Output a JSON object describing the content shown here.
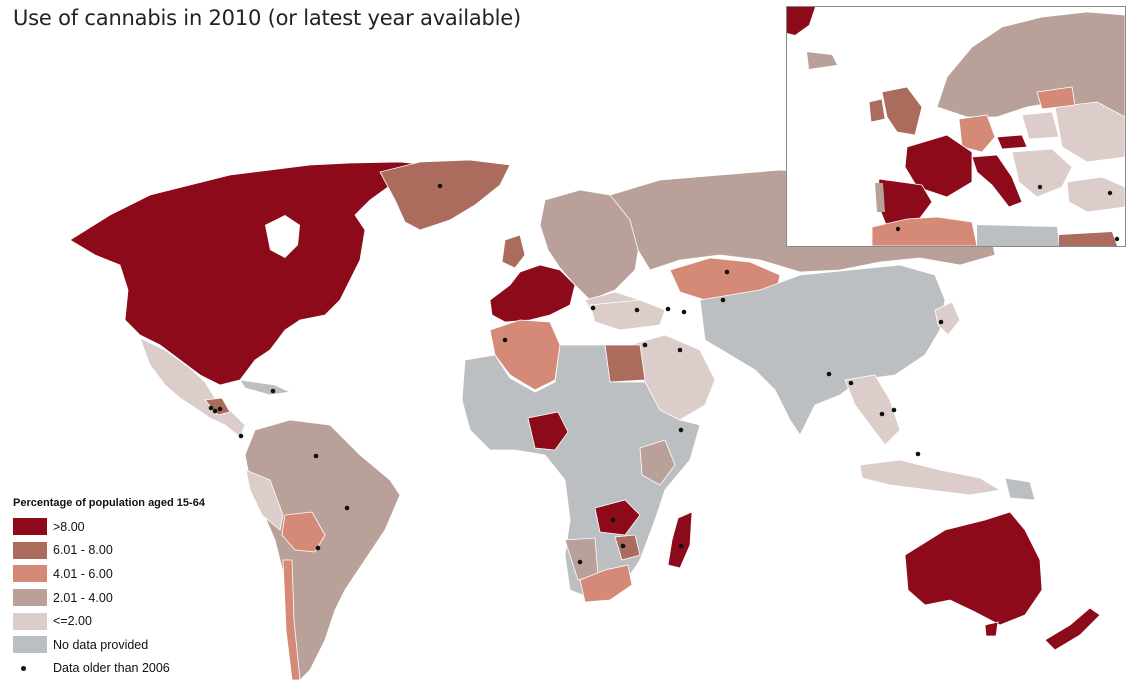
{
  "title": "Use of cannabis in 2010 (or latest year available)",
  "legend": {
    "title": "Percentage of population aged 15-64",
    "items": [
      {
        "label": ">8.00",
        "color": "#8c0a1a"
      },
      {
        "label": "6.01 - 8.00",
        "color": "#ab6b5d"
      },
      {
        "label": "4.01 - 6.00",
        "color": "#d58a78"
      },
      {
        "label": "2.01 - 4.00",
        "color": "#b9a19a"
      },
      {
        "label": "<=2.00",
        "color": "#ddcdca"
      },
      {
        "label": "No data provided",
        "color": "#bcbfc2"
      }
    ],
    "dot_label": "Data older than 2006",
    "dot_color": "#111111"
  },
  "regions": [
    {
      "name": "north-america",
      "category": ">8.00",
      "older_data": false
    },
    {
      "name": "greenland",
      "category": "6.01 - 8.00",
      "older_data": true
    },
    {
      "name": "mexico-central-america",
      "category": "<=2.00",
      "older_data": true
    },
    {
      "name": "south-america",
      "category": "2.01 - 4.00",
      "older_data": true
    },
    {
      "name": "western-europe",
      "category": ">8.00",
      "older_data": false
    },
    {
      "name": "russia",
      "category": "2.01 - 4.00",
      "older_data": false
    },
    {
      "name": "kazakhstan",
      "category": "4.01 - 6.00",
      "older_data": true
    },
    {
      "name": "north-africa",
      "category": "4.01 - 6.00",
      "older_data": true
    },
    {
      "name": "egypt",
      "category": "6.01 - 8.00",
      "older_data": true
    },
    {
      "name": "nigeria",
      "category": ">8.00",
      "older_data": false
    },
    {
      "name": "zambia",
      "category": ">8.00",
      "older_data": true
    },
    {
      "name": "madagascar",
      "category": ">8.00",
      "older_data": true
    },
    {
      "name": "south-africa",
      "category": "4.01 - 6.00",
      "older_data": true
    },
    {
      "name": "middle-east",
      "category": "<=2.00",
      "older_data": true
    },
    {
      "name": "asia",
      "category": "No data provided",
      "older_data": false
    },
    {
      "name": "southeast-asia",
      "category": "<=2.00",
      "older_data": true
    },
    {
      "name": "australia",
      "category": ">8.00",
      "older_data": false
    },
    {
      "name": "new-zealand",
      "category": ">8.00",
      "older_data": false
    }
  ]
}
